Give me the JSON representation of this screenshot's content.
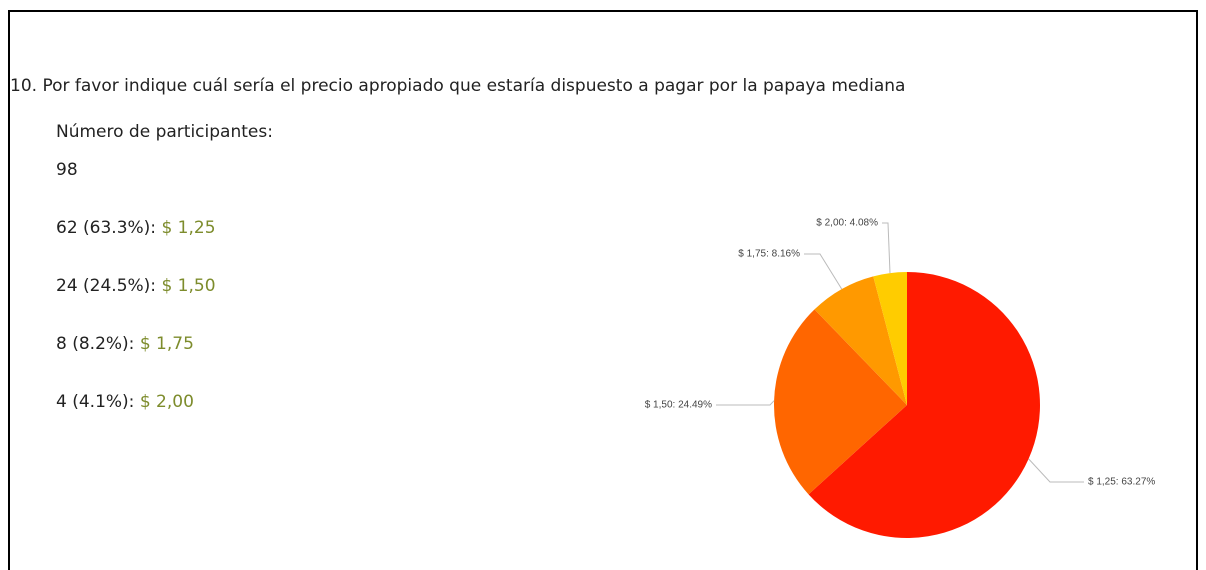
{
  "question": "10. Por favor indique cuál sería el precio apropiado que estaría dispuesto a pagar por la papaya mediana",
  "participants_label": "Número de participantes:",
  "participants": 98,
  "responses": [
    "62 (63.3%):",
    "24 (24.5%):",
    "8 (8.2%):",
    "4 (4.1%):"
  ],
  "chart_data": {
    "type": "pie",
    "categories": [
      "$ 1,25",
      "$ 1,50",
      "$ 1,75",
      "$ 2,00"
    ],
    "values": [
      63.27,
      24.49,
      8.16,
      4.08
    ],
    "value_labels": [
      "$ 1,25: 63.27%",
      "$ 1,50: 24.49%",
      "$ 1,75: 8.16%",
      "$ 2,00: 4.08%"
    ],
    "colors": [
      "#ff1a00",
      "#ff6600",
      "#ff9900",
      "#ffcc00"
    ]
  }
}
